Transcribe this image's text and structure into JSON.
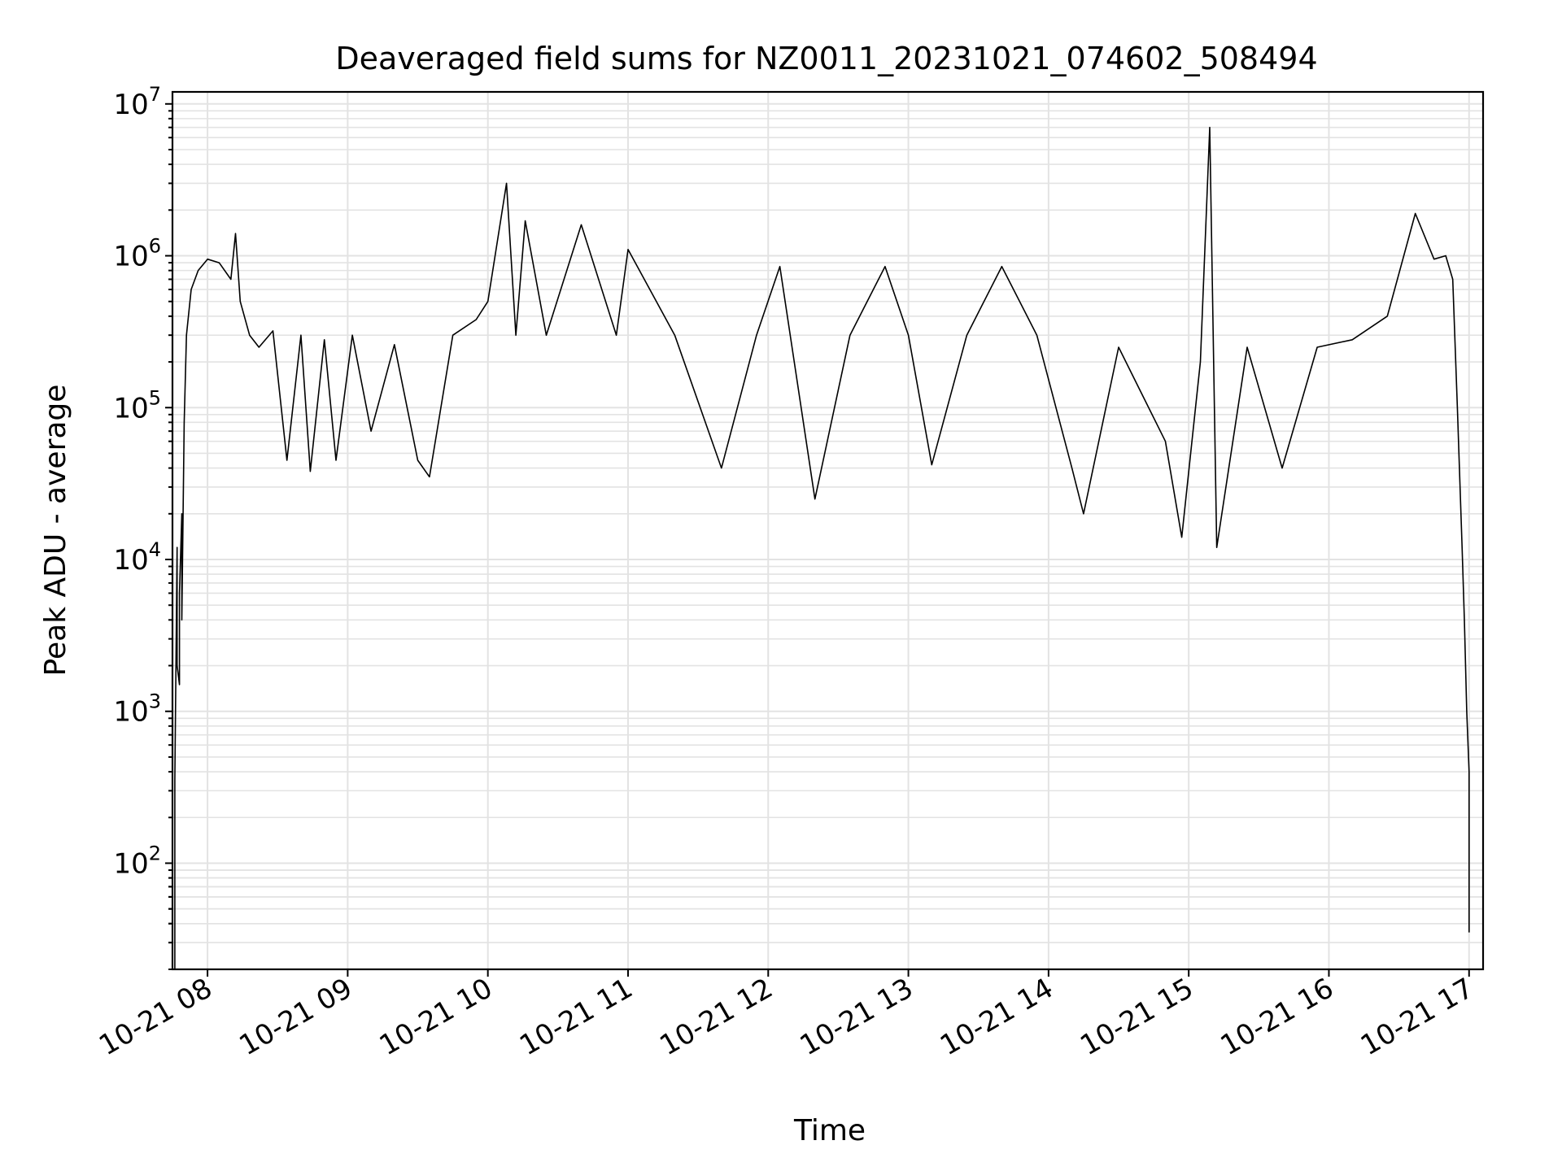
{
  "chart_data": {
    "type": "line",
    "title": "Deaveraged field sums for NZ0011_20231021_074602_508494",
    "xlabel": "Time",
    "ylabel": "Peak ADU - average",
    "yscale": "log",
    "grid": true,
    "line_color": "#000000",
    "xlim": [
      "2023-10-21 07:45",
      "2023-10-21 17:06"
    ],
    "ylim": [
      20,
      12000000
    ],
    "x_ticks": [
      {
        "value": "2023-10-21 08:00",
        "label": "10-21 08"
      },
      {
        "value": "2023-10-21 09:00",
        "label": "10-21 09"
      },
      {
        "value": "2023-10-21 10:00",
        "label": "10-21 10"
      },
      {
        "value": "2023-10-21 11:00",
        "label": "10-21 11"
      },
      {
        "value": "2023-10-21 12:00",
        "label": "10-21 12"
      },
      {
        "value": "2023-10-21 13:00",
        "label": "10-21 13"
      },
      {
        "value": "2023-10-21 14:00",
        "label": "10-21 14"
      },
      {
        "value": "2023-10-21 15:00",
        "label": "10-21 15"
      },
      {
        "value": "2023-10-21 16:00",
        "label": "10-21 16"
      },
      {
        "value": "2023-10-21 17:00",
        "label": "10-21 17"
      }
    ],
    "y_ticks": [
      {
        "value": 100,
        "base": "10",
        "exp": "2"
      },
      {
        "value": 1000,
        "base": "10",
        "exp": "3"
      },
      {
        "value": 10000,
        "base": "10",
        "exp": "4"
      },
      {
        "value": 100000,
        "base": "10",
        "exp": "5"
      },
      {
        "value": 1000000,
        "base": "10",
        "exp": "6"
      },
      {
        "value": 10000000,
        "base": "10",
        "exp": "7"
      }
    ],
    "series": [
      {
        "points": [
          [
            "2023-10-21 07:46",
            20
          ],
          [
            "2023-10-21 07:46",
            350
          ],
          [
            "2023-10-21 07:47",
            12000
          ],
          [
            "2023-10-21 07:47",
            2000
          ],
          [
            "2023-10-21 07:48",
            1500
          ],
          [
            "2023-10-21 07:48",
            6000
          ],
          [
            "2023-10-21 07:49",
            20000
          ],
          [
            "2023-10-21 07:49",
            4000
          ],
          [
            "2023-10-21 07:50",
            80000
          ],
          [
            "2023-10-21 07:51",
            300000
          ],
          [
            "2023-10-21 07:53",
            600000
          ],
          [
            "2023-10-21 07:56",
            800000
          ],
          [
            "2023-10-21 08:00",
            950000
          ],
          [
            "2023-10-21 08:05",
            900000
          ],
          [
            "2023-10-21 08:10",
            700000
          ],
          [
            "2023-10-21 08:12",
            1400000
          ],
          [
            "2023-10-21 08:14",
            500000
          ],
          [
            "2023-10-21 08:18",
            300000
          ],
          [
            "2023-10-21 08:22",
            250000
          ],
          [
            "2023-10-21 08:28",
            320000
          ],
          [
            "2023-10-21 08:34",
            45000
          ],
          [
            "2023-10-21 08:40",
            300000
          ],
          [
            "2023-10-21 08:44",
            38000
          ],
          [
            "2023-10-21 08:50",
            280000
          ],
          [
            "2023-10-21 08:55",
            45000
          ],
          [
            "2023-10-21 09:02",
            300000
          ],
          [
            "2023-10-21 09:10",
            70000
          ],
          [
            "2023-10-21 09:20",
            260000
          ],
          [
            "2023-10-21 09:30",
            45000
          ],
          [
            "2023-10-21 09:35",
            35000
          ],
          [
            "2023-10-21 09:45",
            300000
          ],
          [
            "2023-10-21 09:55",
            380000
          ],
          [
            "2023-10-21 10:00",
            500000
          ],
          [
            "2023-10-21 10:08",
            3000000
          ],
          [
            "2023-10-21 10:12",
            300000
          ],
          [
            "2023-10-21 10:16",
            1700000
          ],
          [
            "2023-10-21 10:25",
            300000
          ],
          [
            "2023-10-21 10:40",
            1600000
          ],
          [
            "2023-10-21 10:55",
            300000
          ],
          [
            "2023-10-21 11:00",
            1100000
          ],
          [
            "2023-10-21 11:20",
            300000
          ],
          [
            "2023-10-21 11:40",
            40000
          ],
          [
            "2023-10-21 11:55",
            300000
          ],
          [
            "2023-10-21 12:05",
            850000
          ],
          [
            "2023-10-21 12:20",
            25000
          ],
          [
            "2023-10-21 12:35",
            300000
          ],
          [
            "2023-10-21 12:50",
            850000
          ],
          [
            "2023-10-21 13:00",
            300000
          ],
          [
            "2023-10-21 13:10",
            42000
          ],
          [
            "2023-10-21 13:25",
            300000
          ],
          [
            "2023-10-21 13:40",
            850000
          ],
          [
            "2023-10-21 13:55",
            300000
          ],
          [
            "2023-10-21 14:10",
            40000
          ],
          [
            "2023-10-21 14:15",
            20000
          ],
          [
            "2023-10-21 14:30",
            250000
          ],
          [
            "2023-10-21 14:50",
            60000
          ],
          [
            "2023-10-21 14:57",
            14000
          ],
          [
            "2023-10-21 15:05",
            200000
          ],
          [
            "2023-10-21 15:09",
            7000000
          ],
          [
            "2023-10-21 15:12",
            12000
          ],
          [
            "2023-10-21 15:25",
            250000
          ],
          [
            "2023-10-21 15:40",
            40000
          ],
          [
            "2023-10-21 15:55",
            250000
          ],
          [
            "2023-10-21 16:10",
            280000
          ],
          [
            "2023-10-21 16:25",
            400000
          ],
          [
            "2023-10-21 16:37",
            1900000
          ],
          [
            "2023-10-21 16:45",
            950000
          ],
          [
            "2023-10-21 16:50",
            1000000
          ],
          [
            "2023-10-21 16:53",
            700000
          ],
          [
            "2023-10-21 16:55",
            100000
          ],
          [
            "2023-10-21 16:57",
            12000
          ],
          [
            "2023-10-21 16:58",
            4000
          ],
          [
            "2023-10-21 16:59",
            1000
          ],
          [
            "2023-10-21 17:00",
            400
          ],
          [
            "2023-10-21 17:00",
            35
          ]
        ]
      }
    ]
  }
}
